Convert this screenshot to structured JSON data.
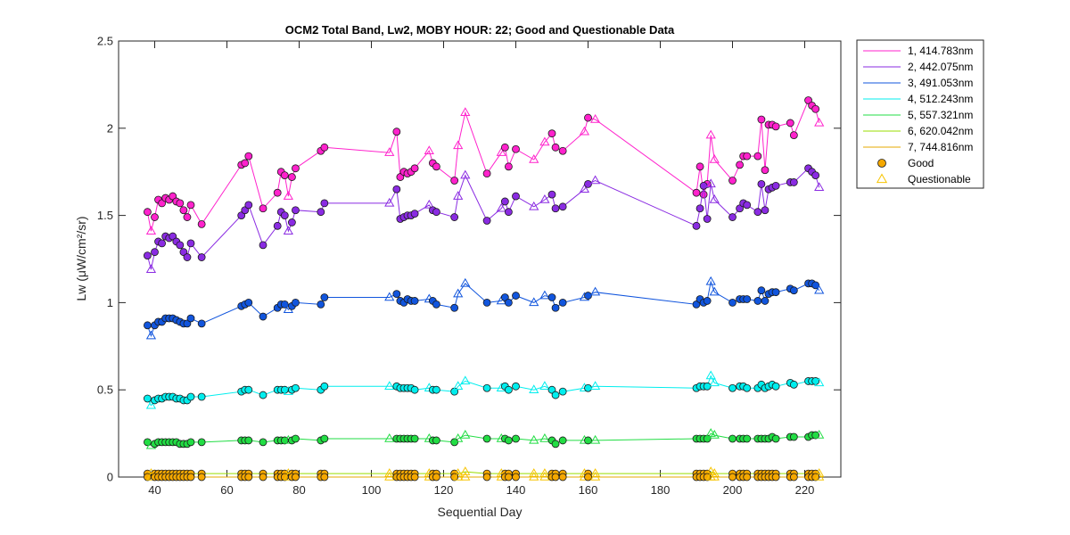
{
  "chart_data": {
    "type": "line",
    "title": "OCM2 Total Band,  Lw2, MOBY HOUR: 22;  Good and Questionable Data",
    "xlabel": "Sequential Day",
    "ylabel": "Lw (μW/cm²/sr)",
    "xlim": [
      30,
      230
    ],
    "ylim": [
      0,
      2.5
    ],
    "xticks": [
      "40",
      "60",
      "80",
      "100",
      "120",
      "140",
      "160",
      "180",
      "200",
      "220"
    ],
    "yticks": [
      "0",
      "0.5",
      "1",
      "1.5",
      "2",
      "2.5"
    ],
    "grid": false,
    "legend_position": "outside-top-right",
    "legend": {
      "series": [
        "1, 414.783nm",
        "2, 442.075nm",
        "3, 491.053nm",
        "4, 512.243nm",
        "5, 557.321nm",
        "6, 620.042nm",
        "7, 744.816nm"
      ],
      "good_label": "Good",
      "questionable_label": "Questionable"
    },
    "x": [
      38,
      39,
      40,
      41,
      42,
      43,
      44,
      45,
      46,
      47,
      48,
      49,
      50,
      53,
      64,
      65,
      66,
      70,
      74,
      75,
      76,
      77,
      78,
      79,
      86,
      87,
      105,
      107,
      108,
      109,
      110,
      111,
      112,
      116,
      117,
      118,
      123,
      124,
      126,
      132,
      136,
      137,
      138,
      140,
      145,
      148,
      150,
      151,
      153,
      159,
      160,
      162,
      190,
      191,
      192,
      193,
      194,
      195,
      200,
      202,
      203,
      204,
      207,
      208,
      209,
      210,
      211,
      212,
      216,
      217,
      221,
      222,
      223,
      224
    ],
    "good": [
      1,
      0,
      1,
      1,
      1,
      1,
      1,
      1,
      1,
      1,
      1,
      1,
      1,
      1,
      1,
      1,
      1,
      1,
      1,
      1,
      1,
      0,
      1,
      1,
      1,
      1,
      0,
      1,
      1,
      1,
      1,
      1,
      1,
      0,
      1,
      1,
      1,
      0,
      0,
      1,
      0,
      1,
      1,
      1,
      0,
      0,
      1,
      1,
      1,
      0,
      1,
      0,
      1,
      1,
      1,
      1,
      0,
      0,
      1,
      1,
      1,
      1,
      1,
      1,
      1,
      1,
      1,
      1,
      1,
      1,
      1,
      1,
      1,
      0
    ],
    "series": [
      {
        "name": "1, 414.783nm",
        "color": "#ff22cc",
        "values": [
          1.52,
          1.41,
          1.49,
          1.59,
          1.57,
          1.6,
          1.59,
          1.61,
          1.58,
          1.57,
          1.53,
          1.49,
          1.56,
          1.45,
          1.79,
          1.8,
          1.84,
          1.54,
          1.63,
          1.75,
          1.73,
          1.61,
          1.72,
          1.77,
          1.87,
          1.89,
          1.86,
          1.98,
          1.72,
          1.75,
          1.74,
          1.75,
          1.77,
          1.87,
          1.8,
          1.78,
          1.7,
          1.9,
          2.09,
          1.74,
          1.86,
          1.89,
          1.78,
          1.88,
          1.82,
          1.92,
          1.97,
          1.89,
          1.87,
          1.98,
          2.06,
          2.05,
          1.63,
          1.78,
          1.62,
          1.68,
          1.96,
          1.82,
          1.7,
          1.79,
          1.84,
          1.84,
          1.84,
          2.05,
          1.76,
          2.02,
          2.02,
          2.01,
          2.03,
          1.96,
          2.16,
          2.13,
          2.11,
          2.03
        ]
      },
      {
        "name": "2, 442.075nm",
        "color": "#8a2be2",
        "values": [
          1.27,
          1.19,
          1.29,
          1.35,
          1.34,
          1.38,
          1.37,
          1.38,
          1.35,
          1.33,
          1.29,
          1.26,
          1.34,
          1.26,
          1.5,
          1.53,
          1.56,
          1.33,
          1.44,
          1.52,
          1.5,
          1.41,
          1.46,
          1.53,
          1.52,
          1.57,
          1.57,
          1.65,
          1.48,
          1.49,
          1.5,
          1.5,
          1.51,
          1.56,
          1.53,
          1.52,
          1.49,
          1.61,
          1.73,
          1.47,
          1.54,
          1.58,
          1.52,
          1.61,
          1.55,
          1.59,
          1.62,
          1.54,
          1.55,
          1.65,
          1.68,
          1.7,
          1.44,
          1.54,
          1.67,
          1.48,
          1.68,
          1.59,
          1.49,
          1.54,
          1.57,
          1.56,
          1.52,
          1.68,
          1.53,
          1.65,
          1.66,
          1.67,
          1.69,
          1.69,
          1.77,
          1.75,
          1.73,
          1.66
        ]
      },
      {
        "name": "3, 491.053nm",
        "color": "#1155dd",
        "values": [
          0.87,
          0.81,
          0.87,
          0.89,
          0.89,
          0.91,
          0.91,
          0.91,
          0.9,
          0.89,
          0.88,
          0.88,
          0.91,
          0.88,
          0.98,
          0.99,
          1.0,
          0.92,
          0.97,
          0.99,
          0.99,
          0.96,
          0.98,
          1.0,
          0.99,
          1.03,
          1.03,
          1.05,
          1.01,
          1.0,
          1.02,
          1.01,
          1.01,
          1.02,
          1.01,
          0.99,
          0.97,
          1.05,
          1.11,
          1.0,
          1.01,
          1.03,
          1.0,
          1.04,
          1.0,
          1.04,
          1.03,
          0.97,
          1.0,
          1.03,
          1.04,
          1.06,
          0.99,
          1.02,
          1.0,
          1.01,
          1.12,
          1.06,
          1.0,
          1.02,
          1.02,
          1.02,
          1.01,
          1.07,
          1.01,
          1.05,
          1.06,
          1.06,
          1.08,
          1.07,
          1.11,
          1.11,
          1.1,
          1.07
        ]
      },
      {
        "name": "4, 512.243nm",
        "color": "#00eeee",
        "values": [
          0.45,
          0.41,
          0.44,
          0.45,
          0.45,
          0.46,
          0.46,
          0.46,
          0.45,
          0.45,
          0.44,
          0.44,
          0.46,
          0.46,
          0.49,
          0.5,
          0.5,
          0.47,
          0.5,
          0.5,
          0.5,
          0.49,
          0.5,
          0.51,
          0.5,
          0.52,
          0.52,
          0.52,
          0.51,
          0.51,
          0.51,
          0.51,
          0.5,
          0.51,
          0.5,
          0.5,
          0.49,
          0.52,
          0.55,
          0.51,
          0.51,
          0.52,
          0.5,
          0.52,
          0.5,
          0.52,
          0.5,
          0.47,
          0.49,
          0.51,
          0.51,
          0.52,
          0.51,
          0.52,
          0.52,
          0.52,
          0.58,
          0.54,
          0.51,
          0.52,
          0.52,
          0.51,
          0.51,
          0.53,
          0.51,
          0.52,
          0.53,
          0.52,
          0.54,
          0.53,
          0.55,
          0.55,
          0.55,
          0.54
        ]
      },
      {
        "name": "5, 557.321nm",
        "color": "#22dd44",
        "values": [
          0.2,
          0.18,
          0.19,
          0.2,
          0.2,
          0.2,
          0.2,
          0.2,
          0.2,
          0.19,
          0.19,
          0.19,
          0.2,
          0.2,
          0.21,
          0.21,
          0.21,
          0.2,
          0.21,
          0.21,
          0.21,
          0.21,
          0.21,
          0.22,
          0.21,
          0.22,
          0.22,
          0.22,
          0.22,
          0.22,
          0.22,
          0.22,
          0.22,
          0.22,
          0.21,
          0.21,
          0.2,
          0.22,
          0.24,
          0.22,
          0.22,
          0.22,
          0.21,
          0.22,
          0.21,
          0.22,
          0.21,
          0.19,
          0.21,
          0.21,
          0.21,
          0.21,
          0.22,
          0.22,
          0.22,
          0.22,
          0.25,
          0.24,
          0.22,
          0.22,
          0.22,
          0.22,
          0.22,
          0.22,
          0.22,
          0.22,
          0.23,
          0.22,
          0.23,
          0.23,
          0.23,
          0.24,
          0.24,
          0.24
        ]
      },
      {
        "name": "6, 620.042nm",
        "color": "#99dd00",
        "values": [
          0.02,
          0.02,
          0.02,
          0.02,
          0.02,
          0.02,
          0.02,
          0.02,
          0.02,
          0.02,
          0.02,
          0.02,
          0.02,
          0.02,
          0.02,
          0.02,
          0.02,
          0.02,
          0.02,
          0.02,
          0.02,
          0.02,
          0.02,
          0.02,
          0.02,
          0.02,
          0.02,
          0.02,
          0.02,
          0.02,
          0.02,
          0.02,
          0.02,
          0.02,
          0.02,
          0.02,
          0.02,
          0.02,
          0.03,
          0.02,
          0.02,
          0.02,
          0.02,
          0.02,
          0.02,
          0.02,
          0.02,
          0.02,
          0.02,
          0.02,
          0.02,
          0.02,
          0.02,
          0.02,
          0.02,
          0.02,
          0.03,
          0.02,
          0.02,
          0.02,
          0.02,
          0.02,
          0.02,
          0.02,
          0.02,
          0.02,
          0.02,
          0.02,
          0.02,
          0.02,
          0.02,
          0.02,
          0.02,
          0.02
        ]
      },
      {
        "name": "7, 744.816nm",
        "color": "#e6a800",
        "values": [
          0.0,
          0.0,
          0.0,
          0.0,
          0.0,
          0.0,
          0.0,
          0.0,
          0.0,
          0.0,
          0.0,
          0.0,
          0.0,
          0.0,
          0.0,
          0.0,
          0.0,
          0.0,
          0.0,
          0.0,
          0.0,
          0.0,
          0.0,
          0.0,
          0.0,
          0.0,
          0.0,
          0.0,
          0.0,
          0.0,
          0.0,
          0.0,
          0.0,
          0.0,
          0.0,
          0.0,
          0.0,
          0.0,
          0.0,
          0.0,
          0.0,
          0.0,
          0.0,
          0.0,
          0.0,
          0.0,
          0.0,
          0.0,
          0.0,
          0.0,
          0.0,
          0.0,
          0.0,
          0.0,
          0.0,
          0.0,
          0.0,
          0.0,
          0.0,
          0.0,
          0.0,
          0.0,
          0.0,
          0.0,
          0.0,
          0.0,
          0.0,
          0.0,
          0.0,
          0.0,
          0.0,
          0.0,
          0.0,
          0.0
        ]
      }
    ],
    "markers": {
      "good_fill": "#f5a800",
      "questionable_stroke": "#f7c400"
    }
  }
}
